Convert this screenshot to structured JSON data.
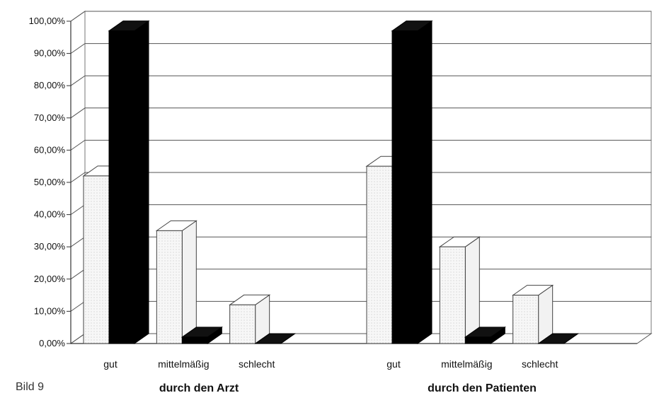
{
  "chart_data": {
    "type": "bar",
    "title": "",
    "xlabel": "",
    "ylabel": "",
    "ylim": [
      0,
      100
    ],
    "y_ticks": [
      "0,00%",
      "10,00%",
      "20,00%",
      "30,00%",
      "40,00%",
      "50,00%",
      "60,00%",
      "70,00%",
      "80,00%",
      "90,00%",
      "100,00%"
    ],
    "grid": true,
    "three_d": true,
    "groups": [
      {
        "label": "durch den Arzt",
        "categories": [
          "gut",
          "mittelmäßig",
          "schlecht"
        ],
        "series": [
          {
            "values": [
              52,
              35,
              12
            ],
            "color": "#f4f4f4"
          },
          {
            "values": [
              97,
              2,
              0
            ],
            "color": "#000000"
          }
        ]
      },
      {
        "label": "durch den Patienten",
        "categories": [
          "gut",
          "mittelmäßig",
          "schlecht"
        ],
        "series": [
          {
            "values": [
              55,
              30,
              15
            ],
            "color": "#f4f4f4"
          },
          {
            "values": [
              97,
              2,
              0
            ],
            "color": "#000000"
          }
        ]
      }
    ]
  },
  "caption": "Bild 9"
}
